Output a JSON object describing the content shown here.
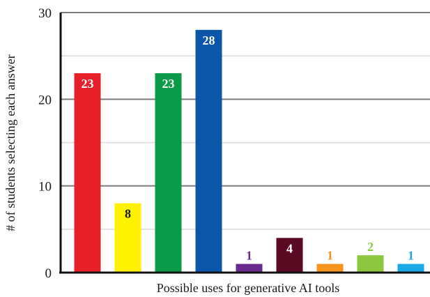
{
  "chart_data": {
    "type": "bar",
    "title": "",
    "xlabel": "Possible uses for generative AI tools",
    "ylabel": "# of students selecting each answer",
    "ylim": [
      0,
      30
    ],
    "yticks": [
      0,
      10,
      20,
      30
    ],
    "grid": true,
    "categories": [
      "",
      "",
      "",
      "",
      "",
      "",
      "",
      "",
      ""
    ],
    "values": [
      23,
      8,
      23,
      28,
      1,
      4,
      1,
      2,
      1
    ],
    "colors": [
      "#e8202a",
      "#fff200",
      "#0a9a4a",
      "#0b56a8",
      "#6a2c8c",
      "#5a0a22",
      "#f7941d",
      "#8dc63f",
      "#1ba9e6"
    ],
    "label_colors": [
      "#ffffff",
      "#1a1a1a",
      "#ffffff",
      "#ffffff",
      "#6a2c8c",
      "#ffffff",
      "#f7941d",
      "#8dc63f",
      "#1ba9e6"
    ],
    "label_inside": [
      true,
      true,
      true,
      true,
      false,
      true,
      false,
      false,
      false
    ]
  }
}
